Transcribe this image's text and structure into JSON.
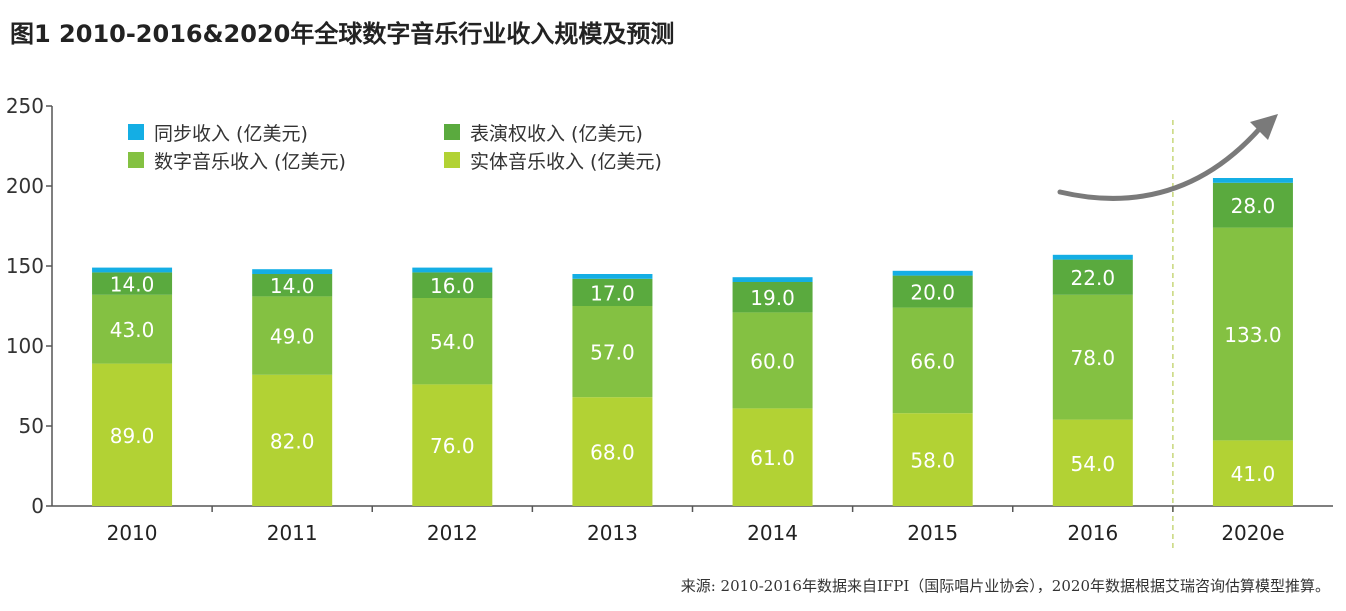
{
  "title": "图1  2010-2016&2020年全球数字音乐行业收入规模及预测",
  "source": "来源: 2010-2016年数据来自IFPI（国际唱片业协会），2020年数据根据艾瑞咨询估算模型推算。",
  "colors": {
    "sync": "#14aee4",
    "performance": "#5aaa3e",
    "digital": "#84c142",
    "physical": "#b2d234",
    "axis": "#555555",
    "arrow": "#7a7a7a",
    "divider": "#c8d87a"
  },
  "chart_data": {
    "type": "bar",
    "stacked": true,
    "categories": [
      "2010",
      "2011",
      "2012",
      "2013",
      "2014",
      "2015",
      "2016",
      "2020e"
    ],
    "ylim": [
      0,
      250
    ],
    "yticks": [
      0,
      50,
      100,
      150,
      200,
      250
    ],
    "legend_position": "top-left",
    "series": [
      {
        "key": "physical",
        "name": "实体音乐收入 (亿美元)",
        "values": [
          89.0,
          82.0,
          76.0,
          68.0,
          61.0,
          58.0,
          54.0,
          41.0
        ]
      },
      {
        "key": "digital",
        "name": "数字音乐收入 (亿美元)",
        "values": [
          43.0,
          49.0,
          54.0,
          57.0,
          60.0,
          66.0,
          78.0,
          133.0
        ]
      },
      {
        "key": "performance",
        "name": "表演权收入 (亿美元)",
        "values": [
          14.0,
          14.0,
          16.0,
          17.0,
          19.0,
          20.0,
          22.0,
          28.0
        ]
      },
      {
        "key": "sync",
        "name": "同步收入 (亿美元)",
        "values": [
          3,
          3,
          3,
          3,
          3,
          3,
          3,
          3
        ]
      }
    ],
    "labeled_series": [
      "physical",
      "digital",
      "performance"
    ],
    "legend_order": [
      "sync",
      "performance",
      "digital",
      "physical"
    ]
  }
}
